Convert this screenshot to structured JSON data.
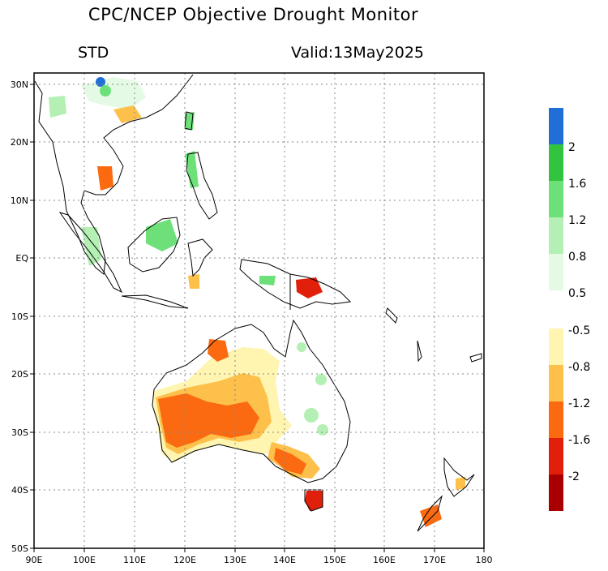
{
  "header": {
    "title": "CPC/NCEP Objective Drought Monitor",
    "product": "STD",
    "valid": "Valid:13May2025"
  },
  "map": {
    "lon_range": [
      90,
      180
    ],
    "lat_range": [
      -50,
      32
    ],
    "x_ticks": [
      "90E",
      "100E",
      "110E",
      "120E",
      "130E",
      "140E",
      "150E",
      "160E",
      "170E",
      "180"
    ],
    "y_ticks": [
      "30N",
      "20N",
      "10N",
      "EQ",
      "10S",
      "20S",
      "30S",
      "40S",
      "50S"
    ],
    "grid": true
  },
  "colorbar": {
    "wet": {
      "labels": [
        "2",
        "1.6",
        "1.2",
        "0.8",
        "0.5"
      ],
      "colors": [
        "#1f6fd6",
        "#33c43f",
        "#6ee07a",
        "#b4f0b4",
        "#e4fae4"
      ]
    },
    "dry": {
      "labels": [
        "-0.5",
        "-0.8",
        "-1.2",
        "-1.6",
        "-2"
      ],
      "colors": [
        "#fff5b0",
        "#fdc04a",
        "#fb6a10",
        "#e0200a",
        "#a80000"
      ]
    }
  }
}
